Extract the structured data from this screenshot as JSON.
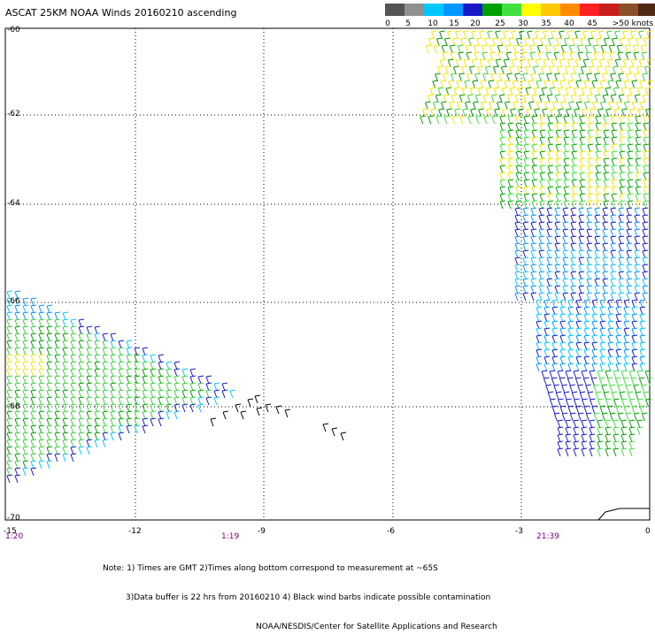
{
  "title": "ASCAT 25KM NOAA Winds 20160210 ascending",
  "legend": {
    "colors": [
      "#555555",
      "#909090",
      "#00c8ff",
      "#0096ff",
      "#1818c8",
      "#00a000",
      "#40e040",
      "#ffff00",
      "#ffc800",
      "#ff8c00",
      "#ff2020",
      "#c81e1e",
      "#8c5028",
      "#502814",
      "#6a00c8",
      "#3c0078"
    ],
    "labels": [
      "0",
      "5",
      "10",
      "15",
      "20",
      "25",
      "30",
      "35",
      "40",
      "45",
      ">50 knots"
    ]
  },
  "y_axis": {
    "labels": [
      "-60",
      "-62",
      "-64",
      "-66",
      "-68",
      "-70"
    ]
  },
  "x_axis": {
    "labels": [
      "-15",
      "-12",
      "-9",
      "-6",
      "-3",
      "0"
    ]
  },
  "times": [
    "1:20",
    "1:19",
    "21:39"
  ],
  "notes": [
    "Note: 1) Times are GMT 2)Times along bottom correspond to measurement at ~65S",
    "3)Data buffer is 22 hrs from 20160210 4) Black wind barbs indicate possible contamination",
    "NOAA/NESDIS/Center for Satellite Applications and Research"
  ]
}
